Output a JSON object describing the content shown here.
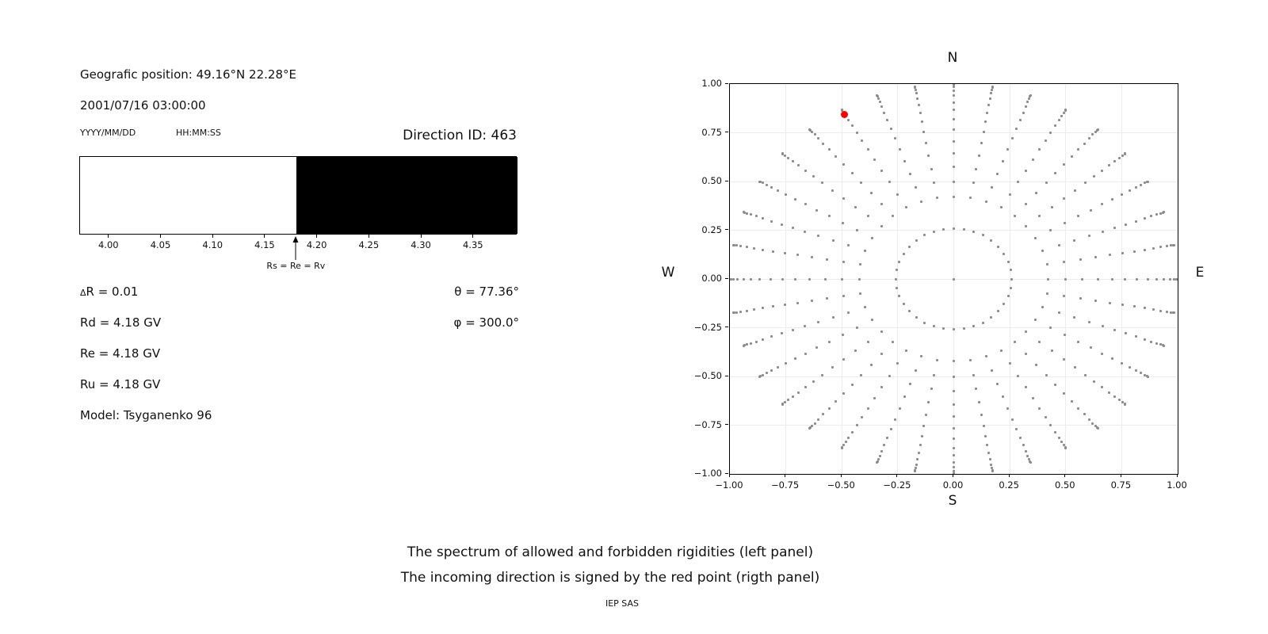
{
  "left_panel": {
    "position_line": "Geografic position: 49.16°N 22.28°E",
    "datetime_line": "2001/07/16 03:00:00",
    "date_format_label": "YYYY/MM/DD",
    "time_format_label": "HH:MM:SS",
    "direction_id_line": "Direction ID: 463",
    "params": {
      "delta_symbol": "Δ",
      "delta_rest": "R = 0.01",
      "rd_line": "Rd = 4.18 GV",
      "re_line": "Re = 4.18 GV",
      "ru_line": "Ru = 4.18 GV",
      "model_line": "Model: Tsyganenko 96",
      "theta_line": "θ = 77.36°",
      "phi_line": "φ = 300.0°"
    }
  },
  "caption": {
    "line1": "The spectrum of allowed and forbidden rigidities (left panel)",
    "line2": "The incoming direction is signed by the red point (rigth panel)",
    "credit": "IEP SAS"
  },
  "chart_data": [
    {
      "type": "bar",
      "panel": "left",
      "description": "Rigidity spectrum: allowed rigidities white, forbidden rigidities black",
      "xlim": [
        3.972,
        4.392
      ],
      "allowed_range": [
        3.972,
        4.18
      ],
      "forbidden_range": [
        4.18,
        4.392
      ],
      "boundary_rigidity": 4.18,
      "xticks": [
        4.0,
        4.05,
        4.1,
        4.15,
        4.2,
        4.25,
        4.3,
        4.35
      ],
      "xtick_labels": [
        "4.00",
        "4.05",
        "4.10",
        "4.15",
        "4.20",
        "4.25",
        "4.30",
        "4.35"
      ],
      "allowed_color": "#ffffff",
      "forbidden_color": "#000000",
      "arrow_x": 4.18,
      "arrow_label": "Rs = Re = Rv"
    },
    {
      "type": "scatter",
      "panel": "right",
      "description": "Grid of incoming directions; red point marks the selected direction",
      "xlim": [
        -1,
        1
      ],
      "ylim": [
        -1,
        1
      ],
      "grid": true,
      "xtick_labels": [
        "−1.00",
        "−0.75",
        "−0.50",
        "−0.25",
        "0.00",
        "0.25",
        "0.50",
        "0.75",
        "1.00"
      ],
      "ytick_labels": [
        "1.00",
        "0.75",
        "0.50",
        "0.25",
        "0.00",
        "−0.25",
        "−0.50",
        "−0.75",
        "−1.00"
      ],
      "compass": {
        "top": "N",
        "bottom": "S",
        "left": "W",
        "right": "E"
      },
      "azimuth_step_deg": 10,
      "ring_zenith_deg": 15,
      "ray_zenith_deg": {
        "start": 25,
        "end": 90,
        "step": 5
      },
      "radius_mapping": "r = sin(zenith)",
      "center_dot": true,
      "dot_color": "#8c8c8c",
      "grid_color": "#ececec",
      "red_point": {
        "zenith_deg": 77.36,
        "azimuth_deg": 300,
        "plot_angle_deg": 120,
        "color": "#ff0000"
      }
    }
  ]
}
